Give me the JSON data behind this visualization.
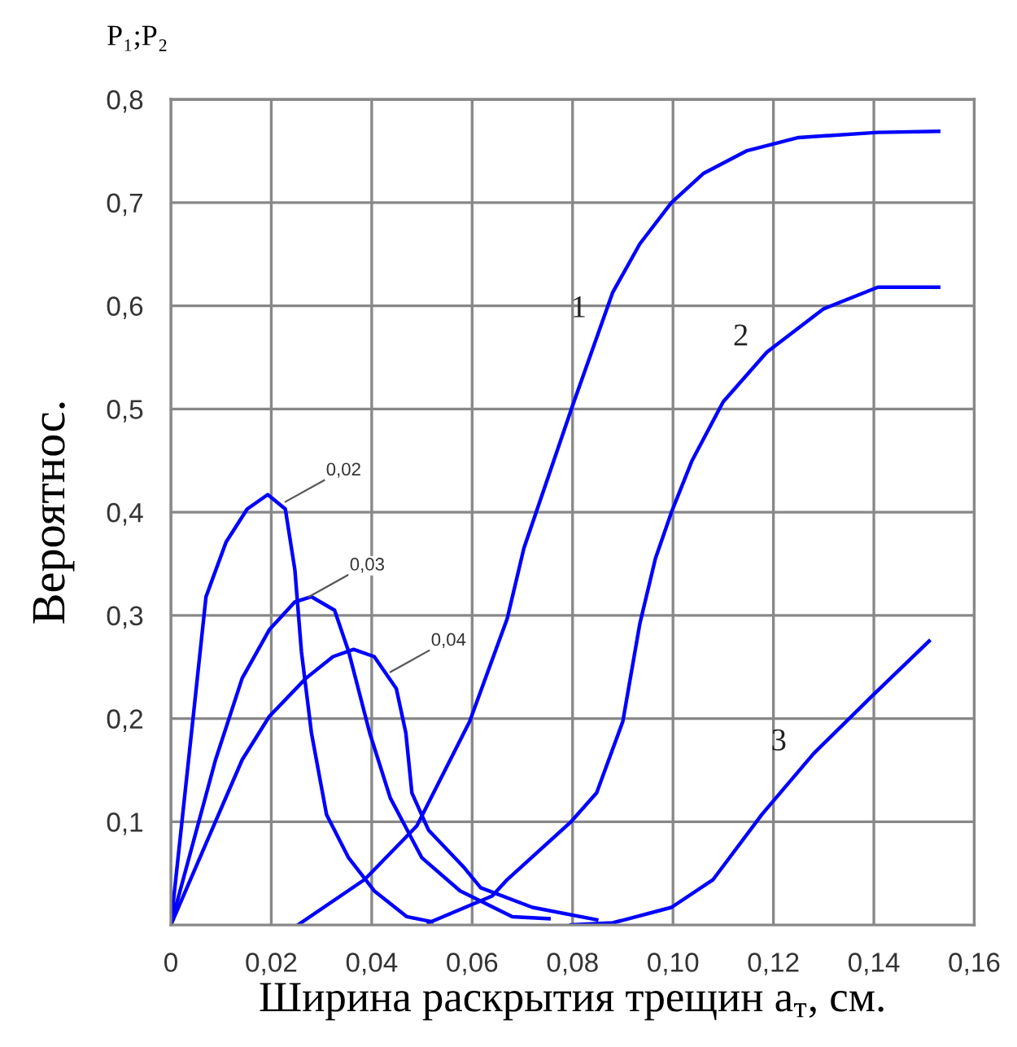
{
  "chart_data": {
    "type": "line",
    "title": "P₁;P₂",
    "xlabel": "Ширина раскрытия трещин a$_{т}$, см.",
    "ylabel": "Вероятнос.",
    "xlim": [
      0,
      0.16
    ],
    "ylim": [
      0,
      0.8
    ],
    "xticks": [
      {
        "value": 0,
        "label": "0"
      },
      {
        "value": 0.02,
        "label": "0,02"
      },
      {
        "value": 0.04,
        "label": "0,04"
      },
      {
        "value": 0.06,
        "label": "0,06"
      },
      {
        "value": 0.08,
        "label": "0,08"
      },
      {
        "value": 0.1,
        "label": "0,10"
      },
      {
        "value": 0.12,
        "label": "0,12"
      },
      {
        "value": 0.14,
        "label": "0,14"
      },
      {
        "value": 0.16,
        "label": "0,16"
      }
    ],
    "yticks": [
      {
        "value": 0.1,
        "label": "0,1"
      },
      {
        "value": 0.2,
        "label": "0,2"
      },
      {
        "value": 0.3,
        "label": "0,3"
      },
      {
        "value": 0.4,
        "label": "0,4"
      },
      {
        "value": 0.5,
        "label": "0,5"
      },
      {
        "value": 0.6,
        "label": "0,6"
      },
      {
        "value": 0.7,
        "label": "0,7"
      },
      {
        "value": 0.8,
        "label": "0,8"
      }
    ],
    "grid": true,
    "marker": "none",
    "line_style": "solid",
    "series": [
      {
        "color": "#0000ff",
        "x": [
          0,
          0.0047,
          0.007,
          0.011,
          0.0152,
          0.0193,
          0.0228,
          0.0247,
          0.026,
          0.028,
          0.031,
          0.0354,
          0.0405,
          0.047,
          0.052
        ],
        "values": [
          0,
          0.213,
          0.318,
          0.371,
          0.403,
          0.417,
          0.403,
          0.344,
          0.265,
          0.186,
          0.107,
          0.065,
          0.033,
          0.008,
          0.003
        ]
      },
      {
        "color": "#0000ff",
        "x": [
          0,
          0.0089,
          0.0142,
          0.0196,
          0.0247,
          0.028,
          0.0326,
          0.0354,
          0.0396,
          0.0437,
          0.05,
          0.0576,
          0.068,
          0.0753
        ],
        "values": [
          0,
          0.16,
          0.239,
          0.286,
          0.313,
          0.318,
          0.305,
          0.265,
          0.186,
          0.123,
          0.065,
          0.033,
          0.008,
          0.006
        ]
      },
      {
        "color": "#0000ff",
        "x": [
          0,
          0.0142,
          0.0196,
          0.0269,
          0.0323,
          0.0364,
          0.0405,
          0.0449,
          0.0468,
          0.048,
          0.0513,
          0.0585,
          0.0617,
          0.072,
          0.0848
        ],
        "values": [
          0,
          0.16,
          0.202,
          0.239,
          0.26,
          0.267,
          0.26,
          0.229,
          0.186,
          0.128,
          0.092,
          0.055,
          0.036,
          0.017,
          0.005
        ]
      },
      {
        "color": "#0000ff",
        "x": [
          0.0253,
          0.0386,
          0.049,
          0.0595,
          0.067,
          0.0703,
          0.0797,
          0.088,
          0.0934,
          0.0997,
          0.106,
          0.1146,
          0.125,
          0.1408,
          0.1529
        ],
        "values": [
          0,
          0.044,
          0.096,
          0.197,
          0.297,
          0.365,
          0.499,
          0.613,
          0.66,
          0.7,
          0.728,
          0.75,
          0.763,
          0.768,
          0.769
        ]
      },
      {
        "color": "#0000ff",
        "x": [
          0.0513,
          0.064,
          0.067,
          0.0797,
          0.0848,
          0.09,
          0.0934,
          0.0965,
          0.0997,
          0.1038,
          0.11,
          0.1187,
          0.13,
          0.1408,
          0.1529
        ],
        "values": [
          0.002,
          0.028,
          0.044,
          0.1,
          0.128,
          0.197,
          0.292,
          0.355,
          0.4,
          0.45,
          0.507,
          0.555,
          0.597,
          0.618,
          0.618
        ]
      },
      {
        "color": "#0000ff",
        "x": [
          0.0797,
          0.088,
          0.0997,
          0.108,
          0.1177,
          0.128,
          0.1399,
          0.151
        ],
        "values": [
          0,
          0.002,
          0.017,
          0.044,
          0.107,
          0.166,
          0.223,
          0.275
        ]
      }
    ],
    "annotations": [
      {
        "text": "0,02",
        "x": 0.0228,
        "y": 0.41
      },
      {
        "text": "0,03",
        "x": 0.0275,
        "y": 0.318
      },
      {
        "text": "0,04",
        "x": 0.0437,
        "y": 0.245
      },
      {
        "text": "1",
        "x": 0.0855,
        "y": 0.578
      },
      {
        "text": "2",
        "x": 0.1187,
        "y": 0.555
      },
      {
        "text": "3",
        "x": 0.124,
        "y": 0.143
      }
    ]
  }
}
